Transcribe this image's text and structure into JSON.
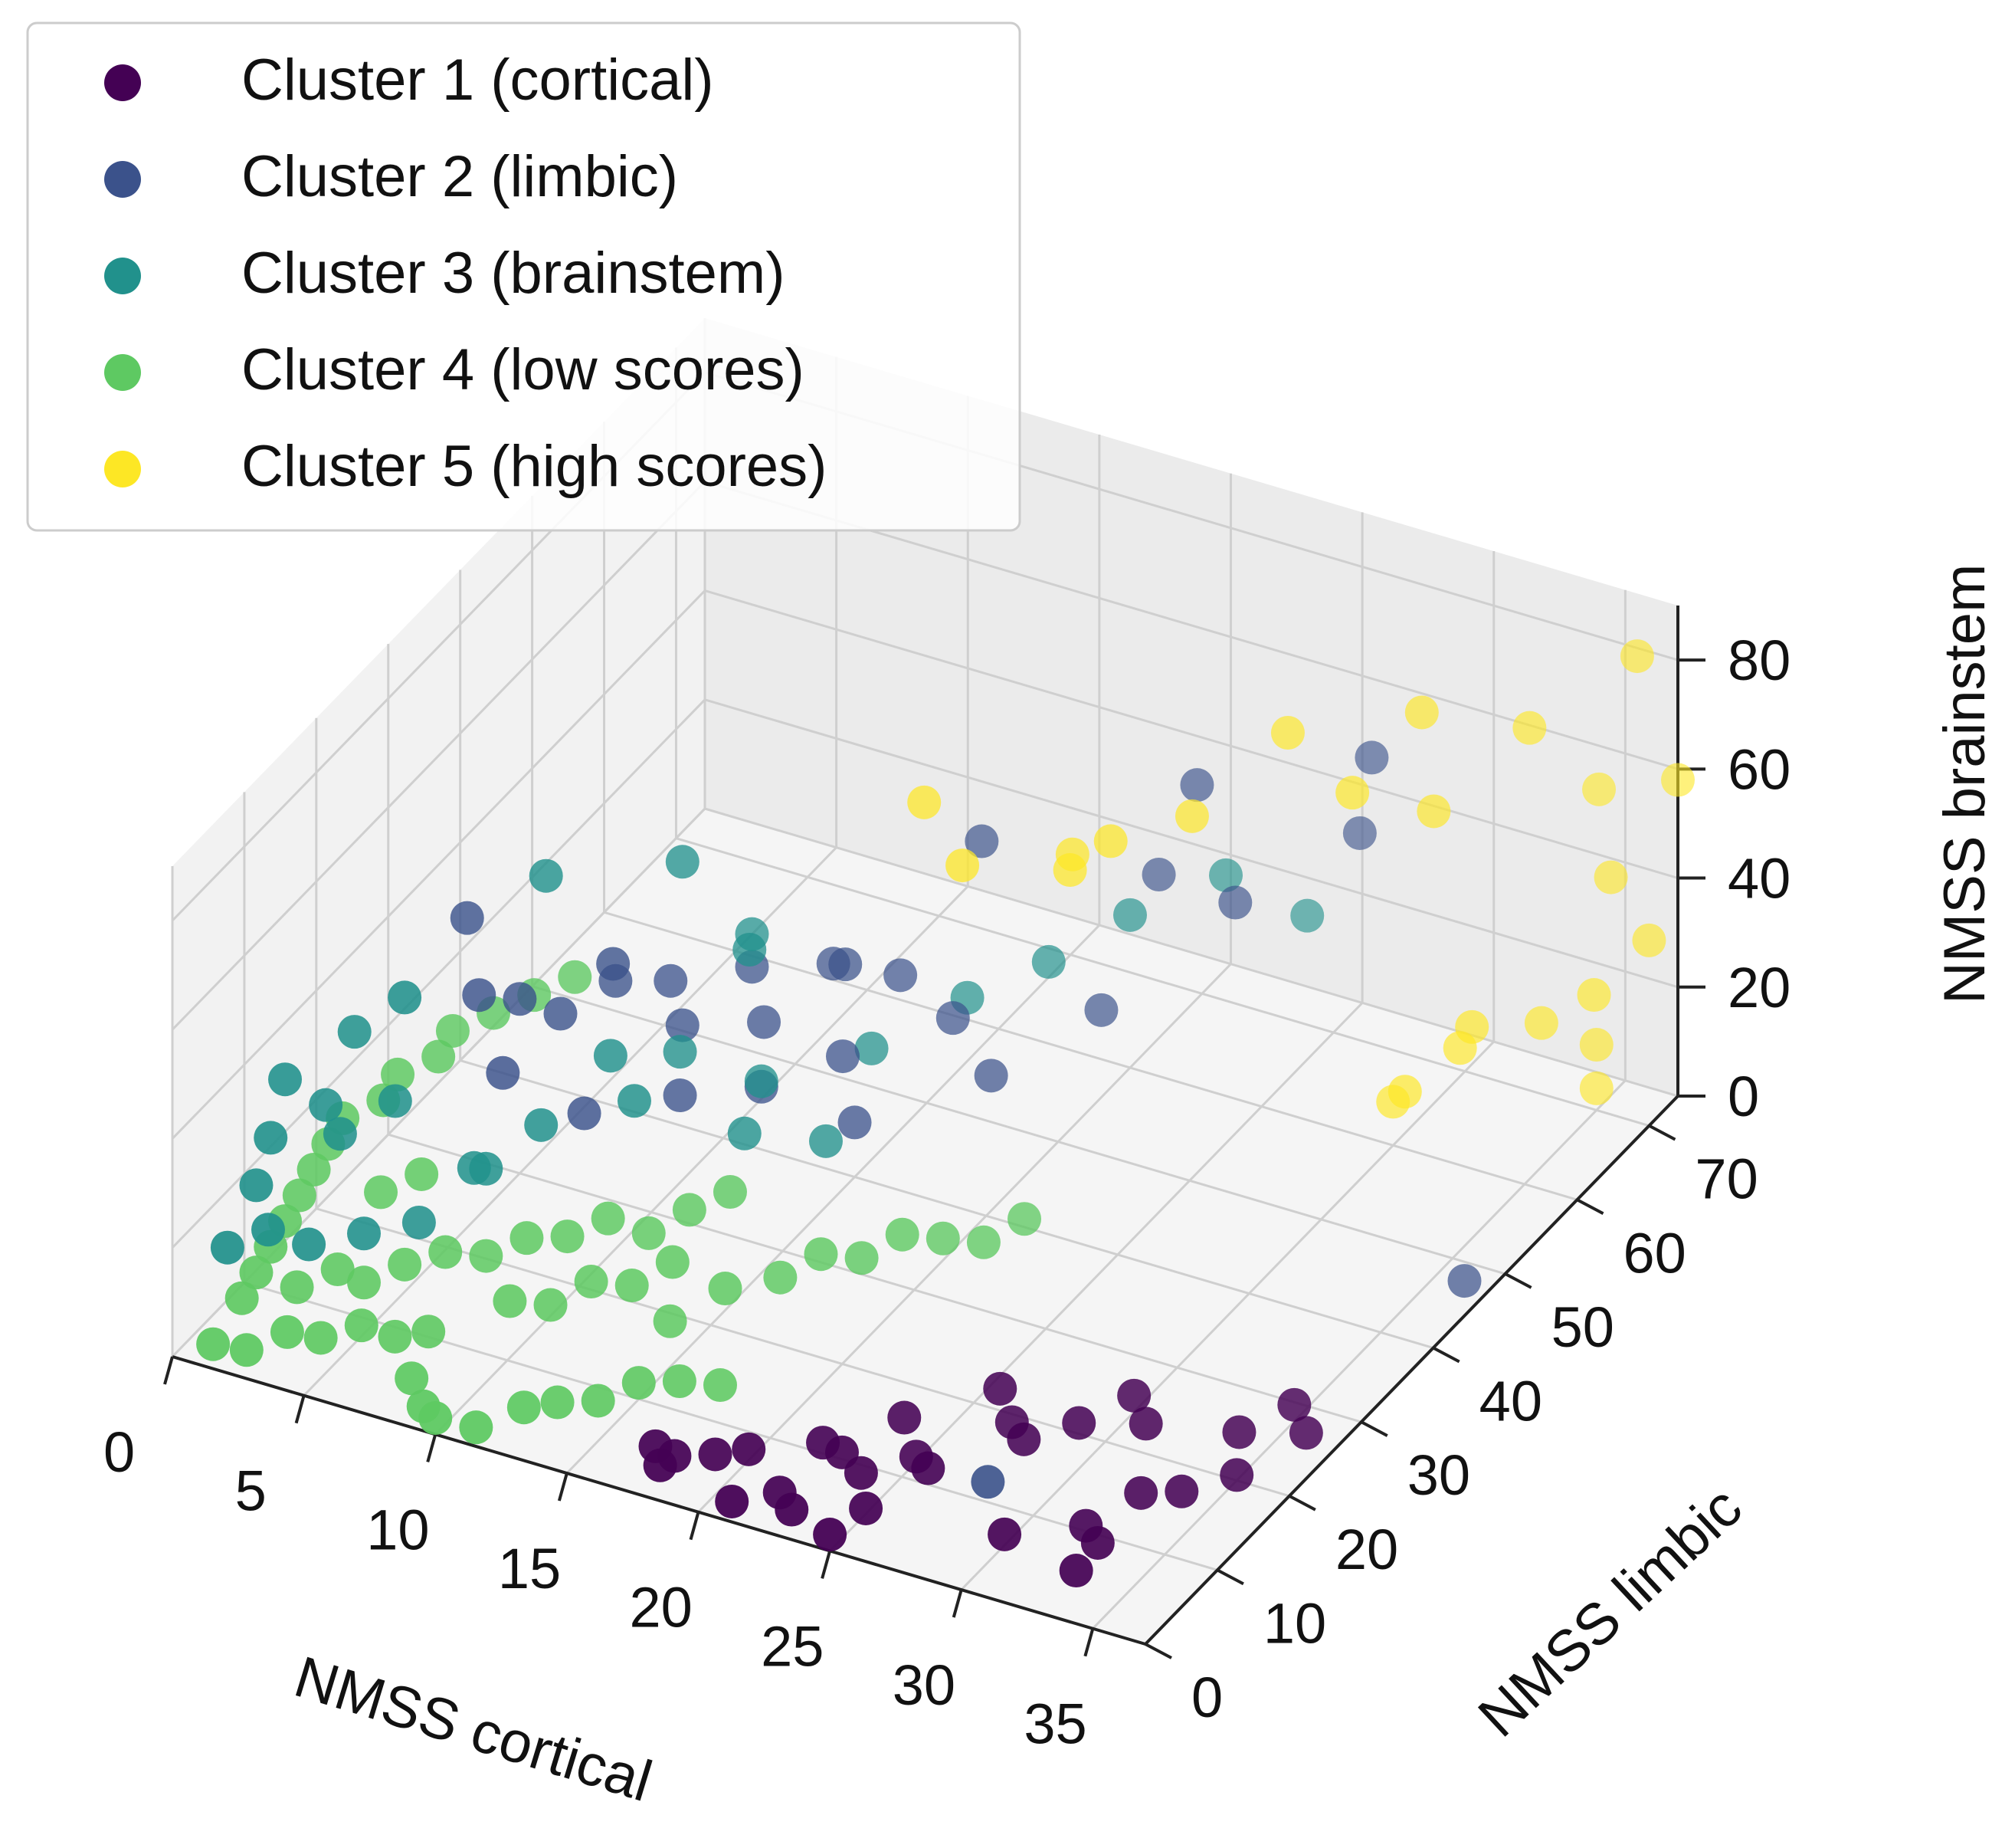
{
  "chart_data": {
    "type": "scatter3d",
    "title": "",
    "xlabel": "NMSS cortical",
    "ylabel": "NMSS limbic",
    "zlabel": "NMSS brainstem",
    "xlim": [
      0,
      37
    ],
    "ylim": [
      0,
      74
    ],
    "zlim": [
      0,
      90
    ],
    "xticks": [
      "0",
      "5",
      "10",
      "15",
      "20",
      "25",
      "30",
      "35"
    ],
    "yticks": [
      "0",
      "10",
      "20",
      "30",
      "40",
      "50",
      "60",
      "70"
    ],
    "zticks": [
      "0",
      "20",
      "40",
      "60",
      "80"
    ],
    "grid": true,
    "legend_position": "top-left",
    "series": [
      {
        "name": "Cluster 1 (cortical)",
        "color": "#440154",
        "points": [
          [
            17,
            5,
            1
          ],
          [
            18,
            4,
            2
          ],
          [
            19,
            6,
            1
          ],
          [
            18,
            2,
            3
          ],
          [
            20,
            7,
            2
          ],
          [
            22,
            10,
            2
          ],
          [
            23,
            9,
            3
          ],
          [
            24,
            8,
            2
          ],
          [
            25,
            12,
            1
          ],
          [
            26,
            10,
            3
          ],
          [
            22,
            4,
            1
          ],
          [
            23,
            2,
            2
          ],
          [
            25,
            5,
            1
          ],
          [
            24,
            14,
            4
          ],
          [
            27,
            18,
            2
          ],
          [
            28,
            16,
            3
          ],
          [
            29,
            20,
            2
          ],
          [
            26,
            20,
            4
          ],
          [
            30,
            24,
            3
          ],
          [
            31,
            22,
            2
          ],
          [
            30,
            6,
            2
          ],
          [
            32,
            10,
            1
          ],
          [
            33,
            14,
            3
          ],
          [
            34,
            16,
            2
          ],
          [
            35,
            20,
            1
          ],
          [
            34,
            24,
            2
          ],
          [
            35,
            28,
            3
          ],
          [
            36,
            26,
            2
          ],
          [
            33,
            8,
            2
          ],
          [
            33,
            5,
            1
          ],
          [
            21,
            1,
            2
          ],
          [
            25,
            0,
            3
          ]
        ]
      },
      {
        "name": "Cluster 2 (limbic)",
        "color": "#3b528b",
        "points": [
          [
            5,
            30,
            32
          ],
          [
            6,
            32,
            28
          ],
          [
            7,
            36,
            30
          ],
          [
            8,
            40,
            26
          ],
          [
            9,
            38,
            22
          ],
          [
            10,
            44,
            26
          ],
          [
            11,
            42,
            20
          ],
          [
            12,
            48,
            24
          ],
          [
            13,
            46,
            28
          ],
          [
            14,
            50,
            22
          ],
          [
            8,
            28,
            18
          ],
          [
            10,
            34,
            16
          ],
          [
            12,
            38,
            15
          ],
          [
            14,
            42,
            18
          ],
          [
            16,
            50,
            17
          ],
          [
            15,
            40,
            10
          ],
          [
            18,
            48,
            12
          ],
          [
            20,
            56,
            16
          ],
          [
            6,
            24,
            28
          ],
          [
            4,
            28,
            34
          ],
          [
            3,
            30,
            44
          ],
          [
            8,
            32,
            40
          ],
          [
            16,
            54,
            44
          ],
          [
            20,
            64,
            30
          ],
          [
            24,
            60,
            36
          ],
          [
            26,
            70,
            38
          ],
          [
            22,
            62,
            52
          ],
          [
            27,
            68,
            56
          ],
          [
            28,
            11,
            2
          ],
          [
            36,
            48,
            0
          ]
        ]
      },
      {
        "name": "Cluster 3 (brainstem)",
        "color": "#21918c",
        "points": [
          [
            1,
            12,
            36
          ],
          [
            2,
            18,
            38
          ],
          [
            2,
            14,
            30
          ],
          [
            1,
            10,
            28
          ],
          [
            3,
            20,
            24
          ],
          [
            2,
            16,
            22
          ],
          [
            1,
            8,
            22
          ],
          [
            2,
            6,
            18
          ],
          [
            1,
            4,
            16
          ],
          [
            3,
            8,
            14
          ],
          [
            4,
            12,
            12
          ],
          [
            5,
            16,
            10
          ],
          [
            6,
            20,
            16
          ],
          [
            7,
            18,
            20
          ],
          [
            8,
            22,
            24
          ],
          [
            9,
            28,
            30
          ],
          [
            10,
            34,
            24
          ],
          [
            11,
            40,
            36
          ],
          [
            12,
            38,
            16
          ],
          [
            14,
            46,
            14
          ],
          [
            16,
            52,
            18
          ],
          [
            18,
            56,
            22
          ],
          [
            20,
            60,
            28
          ],
          [
            22,
            66,
            30
          ],
          [
            24,
            70,
            20
          ],
          [
            5,
            14,
            54
          ],
          [
            6,
            30,
            56
          ],
          [
            9,
            38,
            52
          ],
          [
            10,
            44,
            32
          ],
          [
            11,
            24,
            30
          ],
          [
            13,
            32,
            16
          ],
          [
            15,
            36,
            12
          ]
        ]
      },
      {
        "name": "Cluster 4 (low scores)",
        "color": "#5ec962",
        "points": [
          [
            1,
            2,
            1
          ],
          [
            2,
            3,
            0
          ],
          [
            3,
            5,
            2
          ],
          [
            4,
            6,
            1
          ],
          [
            5,
            8,
            2
          ],
          [
            6,
            9,
            0
          ],
          [
            7,
            10,
            1
          ],
          [
            8,
            4,
            2
          ],
          [
            9,
            2,
            1
          ],
          [
            10,
            0,
            3
          ],
          [
            11,
            2,
            0
          ],
          [
            12,
            5,
            1
          ],
          [
            13,
            6,
            2
          ],
          [
            14,
            8,
            1
          ],
          [
            15,
            10,
            3
          ],
          [
            16,
            12,
            2
          ],
          [
            17,
            14,
            0
          ],
          [
            4,
            12,
            3
          ],
          [
            5,
            14,
            5
          ],
          [
            6,
            16,
            6
          ],
          [
            7,
            18,
            4
          ],
          [
            8,
            20,
            6
          ],
          [
            9,
            22,
            5
          ],
          [
            10,
            24,
            7
          ],
          [
            11,
            26,
            3
          ],
          [
            12,
            28,
            6
          ],
          [
            13,
            30,
            8
          ],
          [
            1,
            6,
            4
          ],
          [
            1,
            8,
            6
          ],
          [
            1,
            10,
            8
          ],
          [
            1,
            12,
            10
          ],
          [
            1,
            14,
            12
          ],
          [
            1,
            16,
            14
          ],
          [
            1,
            18,
            16
          ],
          [
            1,
            20,
            18
          ],
          [
            2,
            22,
            20
          ],
          [
            2,
            24,
            22
          ],
          [
            3,
            26,
            24
          ],
          [
            3,
            28,
            26
          ],
          [
            4,
            30,
            28
          ],
          [
            5,
            32,
            30
          ],
          [
            6,
            34,
            32
          ],
          [
            2,
            10,
            2
          ],
          [
            3,
            12,
            4
          ],
          [
            14,
            18,
            2
          ],
          [
            15,
            22,
            4
          ],
          [
            16,
            26,
            2
          ],
          [
            17,
            28,
            5
          ],
          [
            18,
            30,
            3
          ],
          [
            19,
            32,
            6
          ],
          [
            20,
            34,
            4
          ],
          [
            21,
            36,
            2
          ],
          [
            22,
            38,
            5
          ],
          [
            9,
            14,
            4
          ],
          [
            10,
            16,
            2
          ],
          [
            11,
            18,
            5
          ],
          [
            12,
            20,
            3
          ],
          [
            13,
            22,
            6
          ],
          [
            3,
            18,
            10
          ],
          [
            4,
            20,
            12
          ]
        ]
      },
      {
        "name": "Cluster 5 (high scores)",
        "color": "#fde725",
        "points": [
          [
            30,
            60,
            8
          ],
          [
            31,
            58,
            14
          ],
          [
            32,
            62,
            18
          ],
          [
            33,
            60,
            26
          ],
          [
            34,
            66,
            20
          ],
          [
            35,
            70,
            12
          ],
          [
            36,
            66,
            28
          ],
          [
            37,
            70,
            34
          ],
          [
            35,
            72,
            40
          ],
          [
            34,
            74,
            52
          ],
          [
            37,
            74,
            58
          ],
          [
            36,
            72,
            82
          ],
          [
            31,
            62,
            60
          ],
          [
            29,
            58,
            66
          ],
          [
            24,
            54,
            60
          ],
          [
            22,
            50,
            58
          ],
          [
            21,
            48,
            54
          ],
          [
            20,
            52,
            50
          ],
          [
            18,
            44,
            56
          ],
          [
            16,
            46,
            62
          ],
          [
            26,
            60,
            70
          ],
          [
            30,
            64,
            74
          ],
          [
            33,
            68,
            70
          ],
          [
            35,
            70,
            4
          ]
        ]
      }
    ]
  }
}
